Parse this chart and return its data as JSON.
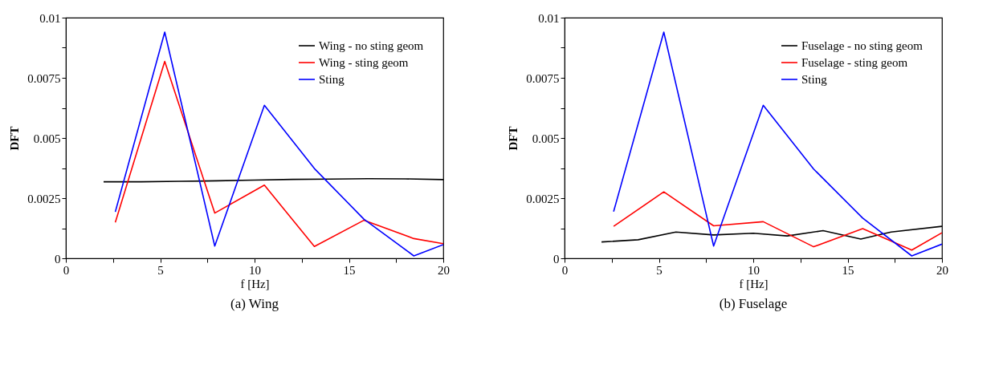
{
  "chart_data": [
    {
      "type": "line",
      "title": "(a) Wing",
      "xlabel": "f [Hz]",
      "ylabel": "DFT",
      "xlim": [
        0,
        20
      ],
      "ylim": [
        0,
        0.01
      ],
      "xticks": [
        0,
        {
          "value": 2.5,
          "label": null
        },
        5,
        {
          "value": 7.5,
          "label": null
        },
        10,
        {
          "value": 12.5,
          "label": null
        },
        15,
        {
          "value": 17.5,
          "label": null
        },
        20
      ],
      "yticks": [
        0,
        {
          "value": 0.00125,
          "label": null
        },
        0.0025,
        {
          "value": 0.00375,
          "label": null
        },
        0.005,
        {
          "value": 0.00625,
          "label": null
        },
        0.0075,
        {
          "value": 0.00875,
          "label": null
        },
        0.01
      ],
      "grid": false,
      "legend": "top right",
      "marker": "none",
      "line_style": "solid",
      "series": [
        {
          "name": "Wing - no sting geom",
          "color": "#000000",
          "x": [
            2,
            4,
            6,
            8,
            10,
            12,
            14,
            16,
            18,
            20
          ],
          "values": [
            0.00318,
            0.00318,
            0.0032,
            0.00322,
            0.00325,
            0.00328,
            0.00329,
            0.00331,
            0.0033,
            0.00327
          ]
        },
        {
          "name": "Wing - sting geom",
          "color": "#ff0000",
          "x": [
            2.62,
            5.24,
            7.89,
            10.52,
            13.17,
            15.79,
            18.44,
            20
          ],
          "values": [
            0.00149,
            0.00818,
            0.00188,
            0.00304,
            0.00049,
            0.00158,
            0.00082,
            0.00061
          ]
        },
        {
          "name": "Sting",
          "color": "#0000ff",
          "x": [
            2.62,
            5.24,
            7.89,
            10.52,
            13.17,
            15.79,
            18.44,
            20
          ],
          "values": [
            0.00193,
            0.0094,
            0.00051,
            0.00636,
            0.00373,
            0.00163,
            0.0001,
            0.00057
          ]
        }
      ]
    },
    {
      "type": "line",
      "title": "(b) Fuselage",
      "xlabel": "f [Hz]",
      "ylabel": "DFT",
      "xlim": [
        0,
        20
      ],
      "ylim": [
        0,
        0.01
      ],
      "xticks": [
        0,
        {
          "value": 2.5,
          "label": null
        },
        5,
        {
          "value": 7.5,
          "label": null
        },
        10,
        {
          "value": 12.5,
          "label": null
        },
        15,
        {
          "value": 17.5,
          "label": null
        },
        20
      ],
      "yticks": [
        0,
        {
          "value": 0.00125,
          "label": null
        },
        0.0025,
        {
          "value": 0.00375,
          "label": null
        },
        0.005,
        {
          "value": 0.00625,
          "label": null
        },
        0.0075,
        {
          "value": 0.00875,
          "label": null
        },
        0.01
      ],
      "grid": false,
      "legend": "top right",
      "marker": "none",
      "line_style": "solid",
      "series": [
        {
          "name": "Fuselage - no sting geom",
          "color": "#000000",
          "x": [
            1.96,
            3.9,
            5.9,
            7.9,
            10,
            11.8,
            13.7,
            15.7,
            17.3,
            20
          ],
          "values": [
            0.00068,
            0.00077,
            0.00109,
            0.00097,
            0.00104,
            0.00093,
            0.00115,
            0.0008,
            0.00109,
            0.00133
          ]
        },
        {
          "name": "Fuselage - sting geom",
          "color": "#ff0000",
          "x": [
            2.6,
            5.26,
            7.9,
            10.53,
            13.2,
            15.8,
            18.4,
            20
          ],
          "values": [
            0.00133,
            0.00276,
            0.00135,
            0.00152,
            0.00048,
            0.00123,
            0.00034,
            0.00106
          ]
        },
        {
          "name": "Sting",
          "color": "#0000ff",
          "x": [
            2.6,
            5.26,
            7.9,
            10.53,
            13.2,
            15.8,
            18.4,
            20
          ],
          "values": [
            0.00194,
            0.0094,
            0.00051,
            0.00636,
            0.00371,
            0.00167,
            0.0001,
            0.00059
          ]
        }
      ]
    }
  ]
}
